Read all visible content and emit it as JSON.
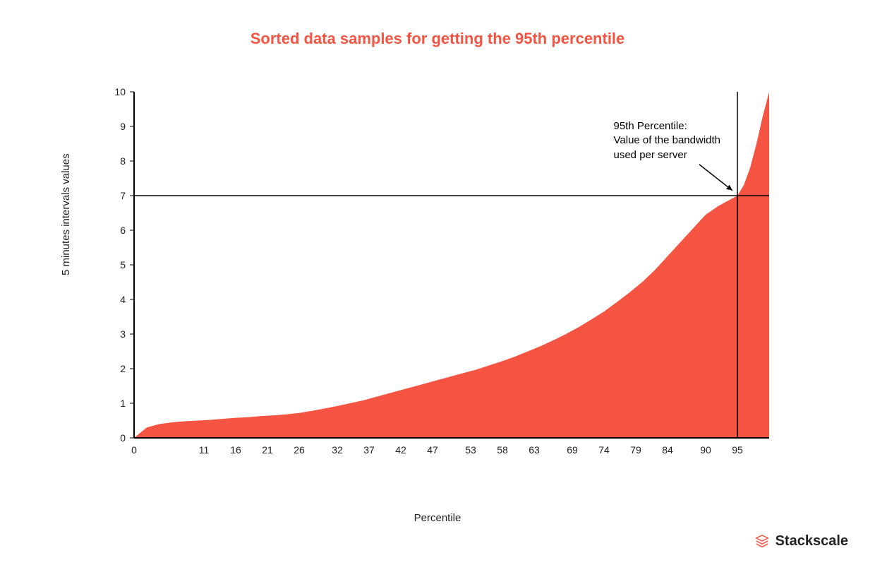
{
  "chart": {
    "type": "area",
    "title": "Sorted data samples for getting the 95th percentile",
    "title_color": "#f55442",
    "title_fontsize": 22,
    "title_fontweight": 700,
    "xlabel": "Percentile",
    "ylabel": "5 minutes intervals values",
    "label_fontsize": 15,
    "background_color": "#ffffff",
    "area_fill_color": "#f55442",
    "axis_color": "#000000",
    "axis_width": 2,
    "marker_line_color": "#000000",
    "marker_line_width": 1.5,
    "xlim": [
      0,
      100
    ],
    "ylim": [
      0,
      10
    ],
    "x_ticks": [
      0,
      11,
      16,
      21,
      26,
      32,
      37,
      42,
      47,
      53,
      58,
      63,
      69,
      74,
      79,
      84,
      90,
      95
    ],
    "y_ticks": [
      0,
      1,
      2,
      3,
      4,
      5,
      6,
      7,
      8,
      9,
      10
    ],
    "tick_fontsize": 14,
    "percentile_marker_x": 95,
    "percentile_marker_y": 7,
    "annotation_lines": [
      "95th Percentile:",
      "Value of the bandwidth",
      "used per server"
    ],
    "annotation_pos_x": 75.5,
    "annotation_pos_y": 9.2,
    "arrow_from_x": 89,
    "arrow_from_y": 7.9,
    "arrow_to_x": 94.2,
    "arrow_to_y": 7.15,
    "data_points": [
      [
        0,
        0.0
      ],
      [
        2,
        0.3
      ],
      [
        4,
        0.4
      ],
      [
        6,
        0.45
      ],
      [
        8,
        0.48
      ],
      [
        10,
        0.5
      ],
      [
        12,
        0.52
      ],
      [
        14,
        0.55
      ],
      [
        16,
        0.58
      ],
      [
        18,
        0.6
      ],
      [
        20,
        0.63
      ],
      [
        22,
        0.65
      ],
      [
        24,
        0.68
      ],
      [
        26,
        0.72
      ],
      [
        28,
        0.78
      ],
      [
        30,
        0.85
      ],
      [
        32,
        0.92
      ],
      [
        34,
        1.0
      ],
      [
        36,
        1.08
      ],
      [
        38,
        1.18
      ],
      [
        40,
        1.28
      ],
      [
        42,
        1.38
      ],
      [
        44,
        1.48
      ],
      [
        46,
        1.58
      ],
      [
        48,
        1.68
      ],
      [
        50,
        1.78
      ],
      [
        52,
        1.88
      ],
      [
        54,
        1.98
      ],
      [
        56,
        2.1
      ],
      [
        58,
        2.22
      ],
      [
        60,
        2.35
      ],
      [
        62,
        2.5
      ],
      [
        64,
        2.65
      ],
      [
        66,
        2.82
      ],
      [
        68,
        3.0
      ],
      [
        70,
        3.2
      ],
      [
        72,
        3.42
      ],
      [
        74,
        3.65
      ],
      [
        76,
        3.92
      ],
      [
        78,
        4.2
      ],
      [
        80,
        4.5
      ],
      [
        82,
        4.85
      ],
      [
        84,
        5.25
      ],
      [
        86,
        5.65
      ],
      [
        88,
        6.05
      ],
      [
        90,
        6.45
      ],
      [
        92,
        6.7
      ],
      [
        94,
        6.9
      ],
      [
        95,
        7.0
      ],
      [
        96,
        7.3
      ],
      [
        97,
        7.8
      ],
      [
        98,
        8.5
      ],
      [
        99,
        9.3
      ],
      [
        100,
        10.0
      ]
    ]
  },
  "logo": {
    "text": "Stackscale",
    "icon_color": "#f55442"
  }
}
